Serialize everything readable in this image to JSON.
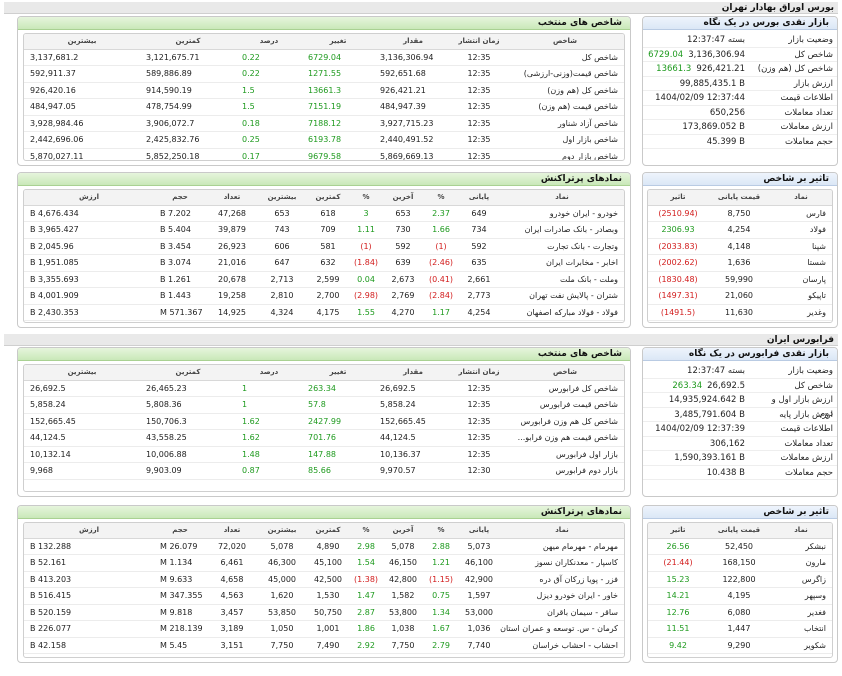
{
  "bourse": {
    "section_title": "بورس اوراق بهادار تهران",
    "overview": {
      "title": "بازار نقدی بورس در یک نگاه",
      "rows": [
        {
          "label": "وضعیت بازار",
          "value": "بسته 12:37:47",
          "change": ""
        },
        {
          "label": "شاخص کل",
          "value": "3,136,306.94",
          "change": "6729.04"
        },
        {
          "label": "شاخص کل (هم وزن)",
          "value": "926,421.21",
          "change": "13661.3"
        },
        {
          "label": "ارزش بازار",
          "value": "99,885,435.1 B",
          "change": ""
        },
        {
          "label": "اطلاعات قیمت",
          "value": "1404/02/09 12:37:44",
          "change": ""
        },
        {
          "label": "تعداد معاملات",
          "value": "650,256",
          "change": ""
        },
        {
          "label": "ارزش معاملات",
          "value": "173,869.052 B",
          "change": ""
        },
        {
          "label": "حجم معاملات",
          "value": "45.399 B",
          "change": ""
        }
      ]
    },
    "selected_indices": {
      "title": "شاخص های منتخب",
      "headers": [
        "شاخص",
        "زمان انتشار",
        "مقدار",
        "تغییر",
        "درصد",
        "کمترین",
        "بیشترین"
      ],
      "rows": [
        {
          "name": "شاخص کل",
          "time": "12:35",
          "value": "3,136,306.94",
          "change": "6729.04",
          "pct": "0.22",
          "low": "3,121,675.71",
          "high": "3,137,681.2"
        },
        {
          "name": "شاخص قیمت(وزنی-ارزشی)",
          "time": "12:35",
          "value": "592,651.68",
          "change": "1271.55",
          "pct": "0.22",
          "low": "589,886.89",
          "high": "592,911.37"
        },
        {
          "name": "شاخص کل (هم وزن)",
          "time": "12:35",
          "value": "926,421.21",
          "change": "13661.3",
          "pct": "1.5",
          "low": "914,590.19",
          "high": "926,420.16"
        },
        {
          "name": "شاخص قیمت (هم وزن)",
          "time": "12:35",
          "value": "484,947.39",
          "change": "7151.19",
          "pct": "1.5",
          "low": "478,754.99",
          "high": "484,947.05"
        },
        {
          "name": "شاخص آزاد شناور",
          "time": "12:35",
          "value": "3,927,715.23",
          "change": "7188.12",
          "pct": "0.18",
          "low": "3,906,072.7",
          "high": "3,928,984.46"
        },
        {
          "name": "شاخص بازار اول",
          "time": "12:35",
          "value": "2,440,491.52",
          "change": "6193.78",
          "pct": "0.25",
          "low": "2,425,832.76",
          "high": "2,442,696.06"
        },
        {
          "name": "شاخص بازار دوم",
          "time": "12:35",
          "value": "5,869,669.13",
          "change": "9679.58",
          "pct": "0.17",
          "low": "5,852,250.18",
          "high": "5,870,027.11"
        }
      ]
    },
    "effect": {
      "title": "تاثیر بر شاخص",
      "headers": [
        "نماد",
        "قیمت پایانی",
        "تاثیر"
      ],
      "rows": [
        {
          "symbol": "فارس",
          "price": "8,750",
          "effect": "(2510.94)",
          "sign": "neg"
        },
        {
          "symbol": "فولاد",
          "price": "4,254",
          "effect": "2306.93",
          "sign": "pos"
        },
        {
          "symbol": "شپنا",
          "price": "4,148",
          "effect": "(2033.83)",
          "sign": "neg"
        },
        {
          "symbol": "شستا",
          "price": "1,636",
          "effect": "(2002.62)",
          "sign": "neg"
        },
        {
          "symbol": "پارسان",
          "price": "59,990",
          "effect": "(1830.48)",
          "sign": "neg"
        },
        {
          "symbol": "تاپیکو",
          "price": "21,060",
          "effect": "(1497.31)",
          "sign": "neg"
        },
        {
          "symbol": "وغدیر",
          "price": "11,630",
          "effect": "(1491.5)",
          "sign": "neg"
        }
      ]
    },
    "most_traded": {
      "title": "نمادهای پرتراکنش",
      "headers": [
        "نماد",
        "پایانی",
        "%",
        "آخرین",
        "%",
        "کمترین",
        "بیشترین",
        "تعداد",
        "حجم",
        "ارزش"
      ],
      "rows": [
        {
          "name": "خودرو - ایران خودرو",
          "close": "649",
          "close_pct": "2.37",
          "cp_sign": "pos",
          "last": "653",
          "last_pct": "3",
          "lp_sign": "pos",
          "low": "618",
          "high": "653",
          "count": "47,268",
          "volume": "7.202 B",
          "value": "4,676.434 B"
        },
        {
          "name": "وبصادر - بانک صادرات ایران",
          "close": "734",
          "close_pct": "1.66",
          "cp_sign": "pos",
          "last": "730",
          "last_pct": "1.11",
          "lp_sign": "pos",
          "low": "709",
          "high": "743",
          "count": "39,879",
          "volume": "5.404 B",
          "value": "3,965.427 B"
        },
        {
          "name": "وتجارت - بانک تجارت",
          "close": "592",
          "close_pct": "(1)",
          "cp_sign": "neg",
          "last": "592",
          "last_pct": "(1)",
          "lp_sign": "neg",
          "low": "581",
          "high": "606",
          "count": "26,923",
          "volume": "3.454 B",
          "value": "2,045.96 B"
        },
        {
          "name": "اخابر - مخابرات ایران",
          "close": "635",
          "close_pct": "(2.46)",
          "cp_sign": "neg",
          "last": "639",
          "last_pct": "(1.84)",
          "lp_sign": "neg",
          "low": "632",
          "high": "647",
          "count": "21,016",
          "volume": "3.074 B",
          "value": "1,951.085 B"
        },
        {
          "name": "وملت - بانک ملت",
          "close": "2,661",
          "close_pct": "(0.41)",
          "cp_sign": "neg",
          "last": "2,673",
          "last_pct": "0.04",
          "lp_sign": "pos",
          "low": "2,599",
          "high": "2,713",
          "count": "20,678",
          "volume": "1.261 B",
          "value": "3,355.693 B"
        },
        {
          "name": "شتران - پالایش نفت تهران",
          "close": "2,773",
          "close_pct": "(2.84)",
          "cp_sign": "neg",
          "last": "2,769",
          "last_pct": "(2.98)",
          "lp_sign": "neg",
          "low": "2,700",
          "high": "2,810",
          "count": "19,258",
          "volume": "1.443 B",
          "value": "4,001.909 B"
        },
        {
          "name": "فولاد - فولاد مبارکه اصفهان",
          "close": "4,254",
          "close_pct": "1.17",
          "cp_sign": "pos",
          "last": "4,270",
          "last_pct": "1.55",
          "lp_sign": "pos",
          "low": "4,175",
          "high": "4,324",
          "count": "14,925",
          "volume": "571.367 M",
          "value": "2,430.353 B"
        }
      ]
    }
  },
  "farabourse": {
    "section_title": "فرابورس ایران",
    "overview": {
      "title": "بازار نقدی فرابورس در یک نگاه",
      "rows": [
        {
          "label": "وضعیت بازار",
          "value": "بسته 12:37:47",
          "change": ""
        },
        {
          "label": "شاخص کل",
          "value": "26,692.5",
          "change": "263.34"
        },
        {
          "label": "ارزش بازار اول و دوم",
          "value": "14,935,924.642 B",
          "change": ""
        },
        {
          "label": "ارزش بازار پایه",
          "value": "3,485,791.604 B",
          "change": ""
        },
        {
          "label": "اطلاعات قیمت",
          "value": "1404/02/09 12:37:39",
          "change": ""
        },
        {
          "label": "تعداد معاملات",
          "value": "306,162",
          "change": ""
        },
        {
          "label": "ارزش معاملات",
          "value": "1,590,393.161 B",
          "change": ""
        },
        {
          "label": "حجم معاملات",
          "value": "10.438 B",
          "change": ""
        }
      ]
    },
    "selected_indices": {
      "title": "شاخص های منتخب",
      "headers": [
        "شاخص",
        "زمان انتشار",
        "مقدار",
        "تغییر",
        "درصد",
        "کمترین",
        "بیشترین"
      ],
      "rows": [
        {
          "name": "شاخص کل فرابورس",
          "time": "12:35",
          "value": "26,692.5",
          "change": "263.34",
          "pct": "1",
          "low": "26,465.23",
          "high": "26,692.5"
        },
        {
          "name": "شاخص قیمت فرابورس",
          "time": "12:35",
          "value": "5,858.24",
          "change": "57.8",
          "pct": "1",
          "low": "5,808.36",
          "high": "5,858.24"
        },
        {
          "name": "شاخص کل هم وزن فرابورس",
          "time": "12:35",
          "value": "152,665.45",
          "change": "2427.99",
          "pct": "1.62",
          "low": "150,706.3",
          "high": "152,665.45"
        },
        {
          "name": "شاخص قیمت هم وزن فرابو...",
          "time": "12:35",
          "value": "44,124.5",
          "change": "701.76",
          "pct": "1.62",
          "low": "43,558.25",
          "high": "44,124.5"
        },
        {
          "name": "بازار اول فرابورس",
          "time": "12:35",
          "value": "10,136.37",
          "change": "147.88",
          "pct": "1.48",
          "low": "10,006.88",
          "high": "10,132.14"
        },
        {
          "name": "بازار دوم فرابورس",
          "time": "12:30",
          "value": "9,970.57",
          "change": "85.66",
          "pct": "0.87",
          "low": "9,903.09",
          "high": "9,968"
        }
      ]
    },
    "effect": {
      "title": "تاثیر بر شاخص",
      "headers": [
        "نماد",
        "قیمت پایانی",
        "تاثیر"
      ],
      "rows": [
        {
          "symbol": "نبشکر",
          "price": "52,450",
          "effect": "26.56",
          "sign": "pos"
        },
        {
          "symbol": "مارون",
          "price": "168,150",
          "effect": "(21.44)",
          "sign": "neg"
        },
        {
          "symbol": "زاگرس",
          "price": "122,800",
          "effect": "15.23",
          "sign": "pos"
        },
        {
          "symbol": "وسپهر",
          "price": "4,195",
          "effect": "14.21",
          "sign": "pos"
        },
        {
          "symbol": "فغدیر",
          "price": "6,080",
          "effect": "12.76",
          "sign": "pos"
        },
        {
          "symbol": "انتخاب",
          "price": "1,447",
          "effect": "11.51",
          "sign": "pos"
        },
        {
          "symbol": "شکویر",
          "price": "9,290",
          "effect": "9.42",
          "sign": "pos"
        }
      ]
    },
    "most_traded": {
      "title": "نمادهای پرتراکنش",
      "headers": [
        "نماد",
        "پایانی",
        "%",
        "آخرین",
        "%",
        "کمترین",
        "بیشترین",
        "تعداد",
        "حجم",
        "ارزش"
      ],
      "rows": [
        {
          "name": "مهرمام - مهرمام میهن",
          "close": "5,073",
          "close_pct": "2.88",
          "cp_sign": "pos",
          "last": "5,078",
          "last_pct": "2.98",
          "lp_sign": "pos",
          "low": "4,890",
          "high": "5,078",
          "count": "72,020",
          "volume": "26.079 M",
          "value": "132.288 B"
        },
        {
          "name": "کاسپار - معدنکاران نسوز",
          "close": "46,100",
          "close_pct": "1.21",
          "cp_sign": "pos",
          "last": "46,150",
          "last_pct": "1.54",
          "lp_sign": "pos",
          "low": "45,100",
          "high": "46,300",
          "count": "6,461",
          "volume": "1.134 M",
          "value": "52.161 B"
        },
        {
          "name": "فزر - پویا زرکان آق دره",
          "close": "42,900",
          "close_pct": "(1.15)",
          "cp_sign": "neg",
          "last": "42,800",
          "last_pct": "(1.38)",
          "lp_sign": "neg",
          "low": "42,500",
          "high": "45,000",
          "count": "4,658",
          "volume": "9.633 M",
          "value": "413.203 B"
        },
        {
          "name": "خاور - ایران خودرو دیزل",
          "close": "1,597",
          "close_pct": "0.75",
          "cp_sign": "pos",
          "last": "1,582",
          "last_pct": "1.47",
          "lp_sign": "pos",
          "low": "1,530",
          "high": "1,620",
          "count": "4,563",
          "volume": "347.355 M",
          "value": "516.415 B"
        },
        {
          "name": "ساقر - سیمان باقران",
          "close": "53,000",
          "close_pct": "1.34",
          "cp_sign": "pos",
          "last": "53,800",
          "last_pct": "2.87",
          "lp_sign": "pos",
          "low": "50,750",
          "high": "53,850",
          "count": "3,457",
          "volume": "9.818 M",
          "value": "520.159 B"
        },
        {
          "name": "کرمان - س. توسعه و عمران استان کرمان",
          "close": "1,036",
          "close_pct": "1.67",
          "cp_sign": "pos",
          "last": "1,038",
          "last_pct": "1.86",
          "lp_sign": "pos",
          "low": "1,001",
          "high": "1,050",
          "count": "3,189",
          "volume": "218.139 M",
          "value": "226.077 B"
        },
        {
          "name": "احشاب - احشاب خراسان",
          "close": "7,740",
          "close_pct": "2.79",
          "cp_sign": "pos",
          "last": "7,750",
          "last_pct": "2.92",
          "lp_sign": "pos",
          "low": "7,490",
          "high": "7,750",
          "count": "3,151",
          "volume": "5.45 M",
          "value": "42.158 B"
        }
      ]
    }
  }
}
